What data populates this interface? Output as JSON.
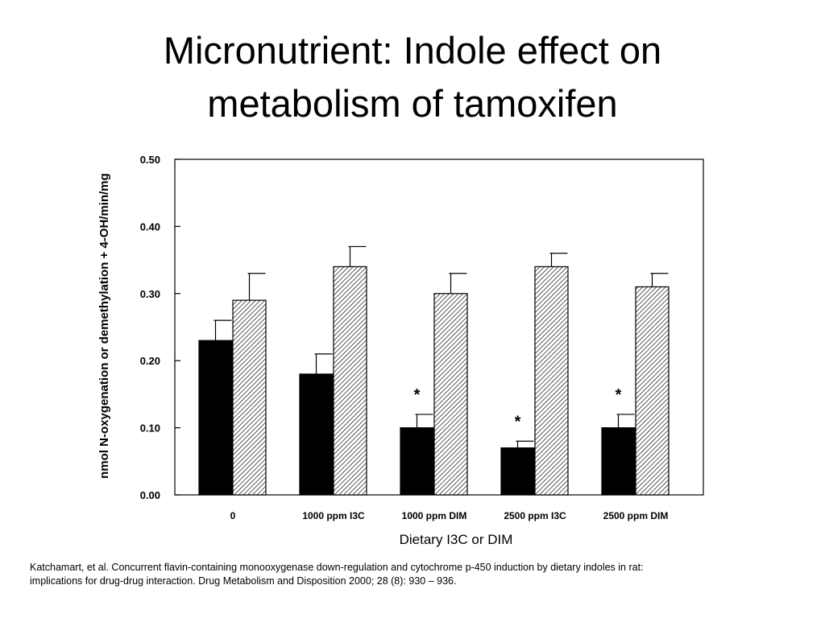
{
  "slide": {
    "title_line1": "Micronutrient: Indole effect on",
    "title_line2": "metabolism of tamoxifen",
    "citation_line1": "Katchamart, et al. Concurrent flavin-containing monooxygenase down-regulation and cytochrome p-450 induction by dietary indoles in rat:",
    "citation_line2": "implications for drug-drug interaction. Drug Metabolism and Disposition 2000; 28 (8): 930 – 936."
  },
  "chart_data": {
    "type": "bar",
    "title": "",
    "xlabel": "Dietary I3C or DIM",
    "ylabel": "nmol N-oxygenation or demethylation + 4-OH/min/mg",
    "categories": [
      "0",
      "1000 ppm I3C",
      "1000 ppm DIM",
      "2500 ppm I3C",
      "2500 ppm DIM"
    ],
    "ylim": [
      0,
      0.5
    ],
    "yticks": [
      "0.00",
      "0.10",
      "0.20",
      "0.30",
      "0.40",
      "0.50"
    ],
    "ytick_values": [
      0,
      0.1,
      0.2,
      0.3,
      0.4,
      0.5
    ],
    "grid": false,
    "legend": "none",
    "series": [
      {
        "fill": "solid",
        "color": "#000000",
        "values": [
          0.23,
          0.18,
          0.1,
          0.07,
          0.1
        ],
        "errors": [
          0.03,
          0.03,
          0.02,
          0.01,
          0.02
        ],
        "significance": [
          "",
          "",
          "*",
          "*",
          "*"
        ]
      },
      {
        "fill": "hatched",
        "color": "#000000",
        "values": [
          0.29,
          0.34,
          0.3,
          0.34,
          0.31
        ],
        "errors": [
          0.04,
          0.03,
          0.03,
          0.02,
          0.02
        ],
        "significance": [
          "",
          "",
          "",
          "",
          ""
        ]
      }
    ]
  }
}
